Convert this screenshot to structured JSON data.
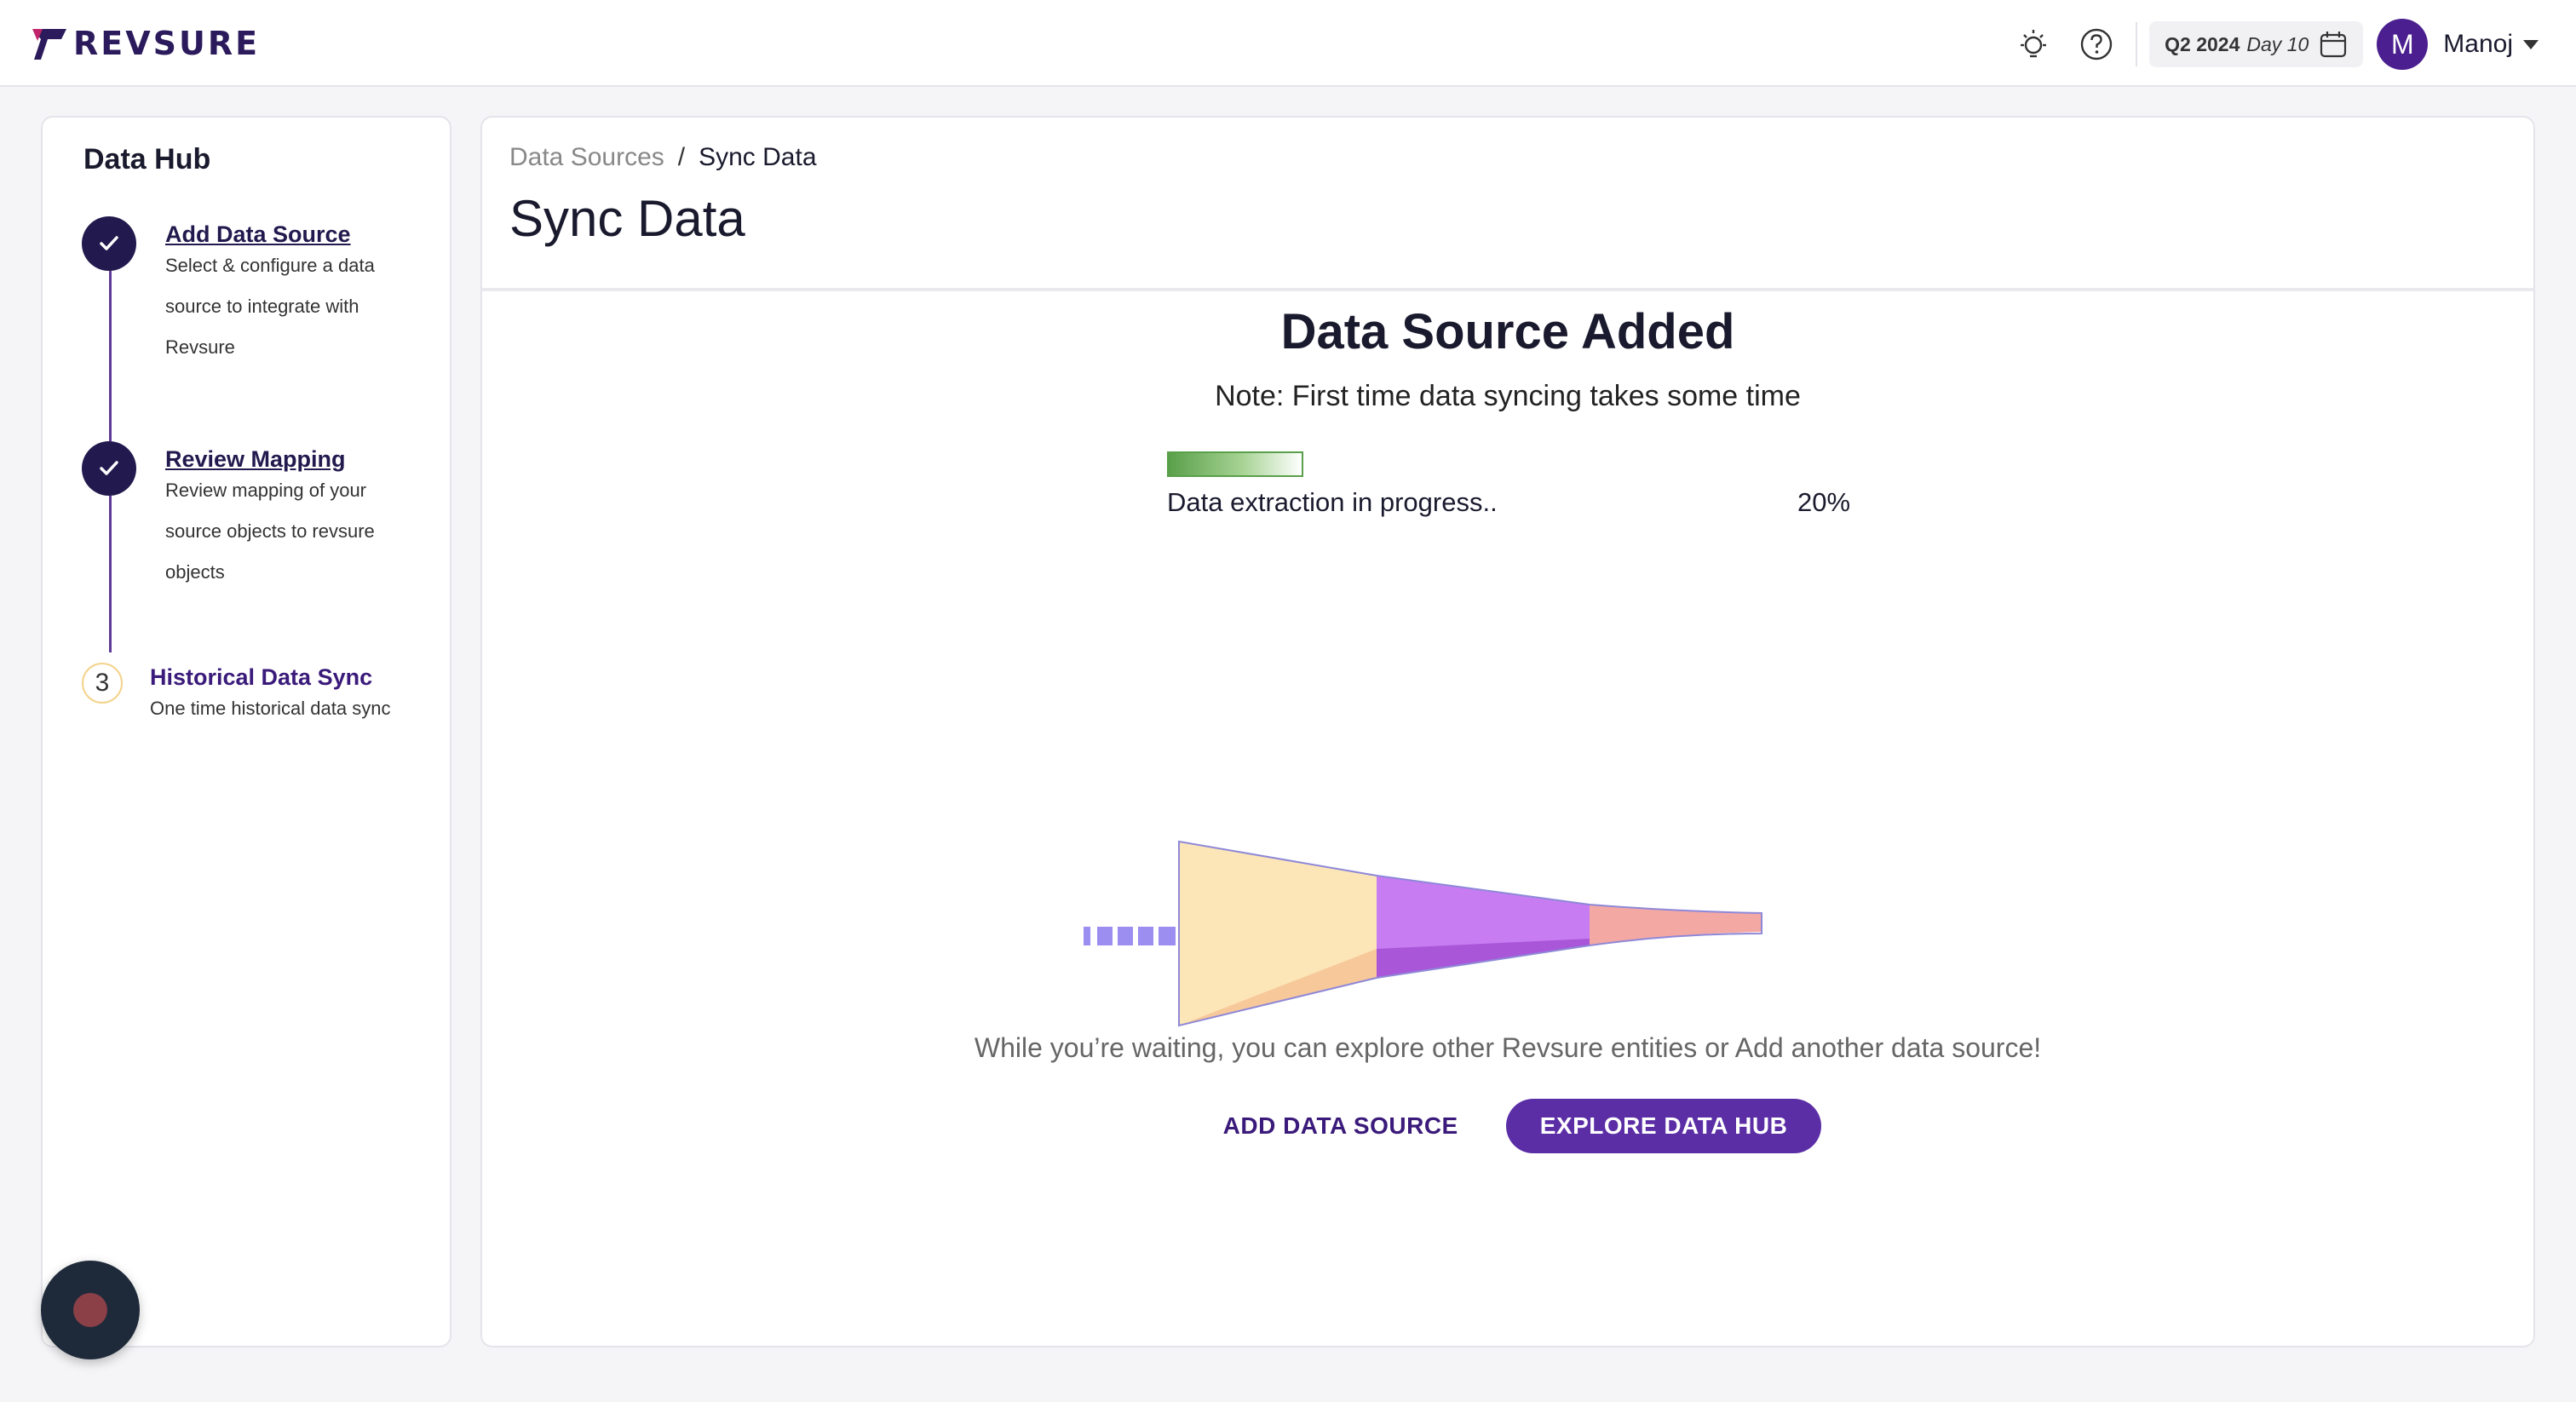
{
  "header": {
    "brand": "REVSURE",
    "period_quarter": "Q2 2024",
    "period_day": "Day 10",
    "user_initial": "M",
    "user_name": "Manoj"
  },
  "sidebar": {
    "title": "Data Hub",
    "steps": [
      {
        "title": "Add Data Source",
        "desc": "Select & configure a data source to integrate with Revsure",
        "status": "complete"
      },
      {
        "title": "Review Mapping",
        "desc": "Review mapping of your source objects to revsure objects",
        "status": "complete"
      },
      {
        "number": "3",
        "title": "Historical Data Sync",
        "desc": "One time historical data sync",
        "status": "current"
      }
    ]
  },
  "main": {
    "breadcrumb": {
      "parent": "Data Sources",
      "separator": "/",
      "current": "Sync Data"
    },
    "title": "Sync Data",
    "headline": "Data Source Added",
    "note": "Note: First time data syncing takes some time",
    "progress": {
      "label": "Data extraction in progress..",
      "percent_text": "20%",
      "percent": 20
    },
    "explore_text": "While you’re waiting, you can explore other Revsure entities or Add another data source!",
    "add_button": "ADD DATA SOURCE",
    "explore_button": "EXPLORE DATA HUB"
  },
  "colors": {
    "brand": "#2b1a5c",
    "primary": "#5b2ea6",
    "progress": "#5aa04a"
  },
  "icons": [
    "revsure-logo-icon",
    "lightbulb-icon",
    "help-icon",
    "calendar-icon",
    "check-icon",
    "chat-icon"
  ]
}
